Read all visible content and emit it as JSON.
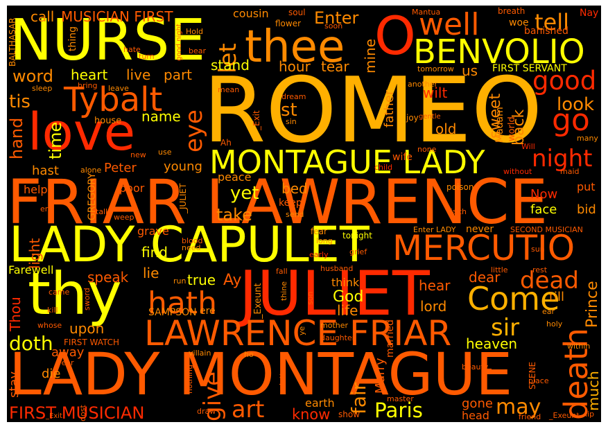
{
  "palette": {
    "yellow": "#ffff00",
    "gold": "#ffb000",
    "orange": "#ff8a00",
    "darkorange": "#ff5a00",
    "red": "#ff2a00",
    "darkred": "#e60000",
    "background": "#000000"
  },
  "words": [
    {
      "text": "ROMEO",
      "color": "gold"
    },
    {
      "text": "FRIAR LAWRENCE",
      "color": "darkorange"
    },
    {
      "text": "LADY MONTAGUE",
      "color": "darkorange"
    },
    {
      "text": "NURSE",
      "color": "yellow"
    },
    {
      "text": "JULIET",
      "color": "red"
    },
    {
      "text": "LADY CAPULET",
      "color": "yellow"
    },
    {
      "text": "love",
      "color": "red"
    },
    {
      "text": "thy",
      "color": "yellow"
    },
    {
      "text": "thee",
      "color": "orange"
    },
    {
      "text": "O",
      "color": "red"
    },
    {
      "text": "MONTAGUE LADY",
      "color": "yellow"
    },
    {
      "text": "LAWRENCE FRIAR",
      "color": "darkorange"
    },
    {
      "text": "MERCUTIO",
      "color": "darkorange"
    },
    {
      "text": "BENVOLIO",
      "color": "yellow"
    },
    {
      "text": "Tybalt",
      "color": "darkorange"
    },
    {
      "text": "well",
      "color": "darkorange"
    },
    {
      "text": "good",
      "color": "red"
    },
    {
      "text": "go",
      "color": "red"
    },
    {
      "text": "death",
      "color": "darkorange"
    },
    {
      "text": "Come",
      "color": "gold"
    },
    {
      "text": "hath",
      "color": "darkorange"
    },
    {
      "text": "night",
      "color": "red"
    },
    {
      "text": "art",
      "color": "darkorange"
    },
    {
      "text": "Paris",
      "color": "yellow"
    },
    {
      "text": "dead",
      "color": "darkorange"
    },
    {
      "text": "tell",
      "color": "orange"
    },
    {
      "text": "let",
      "color": "orange"
    },
    {
      "text": "eye",
      "color": "darkorange"
    },
    {
      "text": "give",
      "color": "darkorange"
    },
    {
      "text": "may",
      "color": "orange"
    },
    {
      "text": "sir",
      "color": "gold"
    },
    {
      "text": "Enter",
      "color": "orange"
    },
    {
      "text": "FIRST MUSICIAN",
      "color": "red"
    },
    {
      "text": "doth",
      "color": "yellow"
    },
    {
      "text": "know",
      "color": "red"
    },
    {
      "text": "fair",
      "color": "orange"
    },
    {
      "text": "much",
      "color": "gold"
    },
    {
      "text": "Prince",
      "color": "orange"
    },
    {
      "text": "look",
      "color": "orange"
    },
    {
      "text": "word",
      "color": "orange"
    },
    {
      "text": "tis",
      "color": "orange"
    },
    {
      "text": "hand",
      "color": "darkorange"
    },
    {
      "text": "time",
      "color": "yellow"
    },
    {
      "text": "heart",
      "color": "yellow"
    },
    {
      "text": "live",
      "color": "orange"
    },
    {
      "text": "part",
      "color": "orange"
    },
    {
      "text": "stand",
      "color": "yellow"
    },
    {
      "text": "hour",
      "color": "orange"
    },
    {
      "text": "tear",
      "color": "orange"
    },
    {
      "text": "st",
      "color": "orange"
    },
    {
      "text": "old",
      "color": "orange"
    },
    {
      "text": "name",
      "color": "yellow"
    },
    {
      "text": "yet",
      "color": "yellow"
    },
    {
      "text": "take",
      "color": "orange"
    },
    {
      "text": "bed",
      "color": "orange"
    },
    {
      "text": "face",
      "color": "yellow"
    },
    {
      "text": "bid",
      "color": "orange"
    },
    {
      "text": "Now",
      "color": "red"
    },
    {
      "text": "sweet",
      "color": "orange"
    },
    {
      "text": "back",
      "color": "orange"
    },
    {
      "text": "wilt",
      "color": "red"
    },
    {
      "text": "us",
      "color": "orange"
    },
    {
      "text": "mine",
      "color": "orange"
    },
    {
      "text": "father",
      "color": "orange"
    },
    {
      "text": "find",
      "color": "yellow"
    },
    {
      "text": "lie",
      "color": "orange"
    },
    {
      "text": "speak",
      "color": "darkorange"
    },
    {
      "text": "true",
      "color": "yellow"
    },
    {
      "text": "Ay",
      "color": "darkorange"
    },
    {
      "text": "God",
      "color": "yellow"
    },
    {
      "text": "life",
      "color": "orange"
    },
    {
      "text": "think",
      "color": "orange"
    },
    {
      "text": "hear",
      "color": "darkorange"
    },
    {
      "text": "lord",
      "color": "orange"
    },
    {
      "text": "dear",
      "color": "darkorange"
    },
    {
      "text": "till",
      "color": "orange"
    },
    {
      "text": "heaven",
      "color": "yellow"
    },
    {
      "text": "upon",
      "color": "orange"
    },
    {
      "text": "Thou",
      "color": "red"
    },
    {
      "text": "light",
      "color": "darkorange"
    },
    {
      "text": "away",
      "color": "darkorange"
    },
    {
      "text": "die",
      "color": "orange"
    },
    {
      "text": "stay",
      "color": "darkorange"
    },
    {
      "text": "gone",
      "color": "darkorange"
    },
    {
      "text": "head",
      "color": "darkorange"
    },
    {
      "text": "Marry",
      "color": "darkorange"
    },
    {
      "text": "earth",
      "color": "orange"
    },
    {
      "text": "call",
      "color": "orange"
    },
    {
      "text": "MUSICIAN FIRST",
      "color": "darkorange"
    },
    {
      "text": "cousin",
      "color": "orange"
    },
    {
      "text": "soul",
      "color": "darkorange"
    },
    {
      "text": "flower",
      "color": "orange"
    },
    {
      "text": "soon",
      "color": "darkorange"
    },
    {
      "text": "Mantua",
      "color": "darkorange"
    },
    {
      "text": "breath",
      "color": "darkorange"
    },
    {
      "text": "woe",
      "color": "orange"
    },
    {
      "text": "Nay",
      "color": "red"
    },
    {
      "text": "banished",
      "color": "darkorange"
    },
    {
      "text": "thing",
      "color": "orange"
    },
    {
      "text": "good night",
      "color": "darkorange"
    },
    {
      "text": "Hold",
      "color": "orange"
    },
    {
      "text": "hate",
      "color": "darkorange"
    },
    {
      "text": "turn",
      "color": "darkorange"
    },
    {
      "text": "bear",
      "color": "darkorange"
    },
    {
      "text": "BALTHASAR",
      "color": "orange"
    },
    {
      "text": "tomorrow",
      "color": "orange"
    },
    {
      "text": "FIRST SERVANT",
      "color": "yellow"
    },
    {
      "text": "another",
      "color": "orange"
    },
    {
      "text": "sleep",
      "color": "orange"
    },
    {
      "text": "bring",
      "color": "darkorange"
    },
    {
      "text": "leave",
      "color": "orange"
    },
    {
      "text": "mean",
      "color": "darkorange"
    },
    {
      "text": "_Exit",
      "color": "darkorange"
    },
    {
      "text": "dream",
      "color": "darkorange"
    },
    {
      "text": "sin",
      "color": "orange"
    },
    {
      "text": "joy",
      "color": "orange"
    },
    {
      "text": "gentle",
      "color": "darkorange"
    },
    {
      "text": "Madam",
      "color": "orange"
    },
    {
      "text": "world",
      "color": "darkorange"
    },
    {
      "text": "many",
      "color": "orange"
    },
    {
      "text": "house",
      "color": "orange"
    },
    {
      "text": "wife",
      "color": "darkorange"
    },
    {
      "text": "none",
      "color": "darkorange"
    },
    {
      "text": "Will",
      "color": "red"
    },
    {
      "text": "new",
      "color": "darkorange"
    },
    {
      "text": "use",
      "color": "orange"
    },
    {
      "text": "Ah",
      "color": "darkorange"
    },
    {
      "text": "hast",
      "color": "orange"
    },
    {
      "text": "Peter",
      "color": "darkorange"
    },
    {
      "text": "young",
      "color": "orange"
    },
    {
      "text": "alone",
      "color": "orange"
    },
    {
      "text": "child",
      "color": "red"
    },
    {
      "text": "without",
      "color": "red"
    },
    {
      "text": "maid",
      "color": "darkorange"
    },
    {
      "text": "help",
      "color": "darkorange"
    },
    {
      "text": "GREGORY",
      "color": "orange"
    },
    {
      "text": "poor",
      "color": "darkorange"
    },
    {
      "text": "peace",
      "color": "orange"
    },
    {
      "text": "_JULIET",
      "color": "orange"
    },
    {
      "text": "poison",
      "color": "orange"
    },
    {
      "text": "put",
      "color": "darkorange"
    },
    {
      "text": "er",
      "color": "darkorange"
    },
    {
      "text": "talk",
      "color": "darkorange"
    },
    {
      "text": "weep",
      "color": "darkorange"
    },
    {
      "text": "keep",
      "color": "darkorange"
    },
    {
      "text": "send",
      "color": "orange"
    },
    {
      "text": "faith",
      "color": "darkorange"
    },
    {
      "text": "grave",
      "color": "darkorange"
    },
    {
      "text": "fear",
      "color": "orange"
    },
    {
      "text": "tonight",
      "color": "yellow"
    },
    {
      "text": "Enter LADY",
      "color": "orange"
    },
    {
      "text": "never",
      "color": "orange"
    },
    {
      "text": "SECOND MUSICIAN",
      "color": "darkorange"
    },
    {
      "text": "blood",
      "color": "darkorange"
    },
    {
      "text": "need",
      "color": "orange"
    },
    {
      "text": "long",
      "color": "orange"
    },
    {
      "text": "early",
      "color": "red"
    },
    {
      "text": "grief",
      "color": "darkorange"
    },
    {
      "text": "sun",
      "color": "darkorange"
    },
    {
      "text": "Farewell",
      "color": "yellow"
    },
    {
      "text": "husband",
      "color": "darkorange"
    },
    {
      "text": "little",
      "color": "darkorange"
    },
    {
      "text": "rest",
      "color": "darkorange"
    },
    {
      "text": "run",
      "color": "orange"
    },
    {
      "text": "fall",
      "color": "darkorange"
    },
    {
      "text": "came",
      "color": "darkorange"
    },
    {
      "text": "sword",
      "color": "darkorange"
    },
    {
      "text": "_Exeunt",
      "color": "orange"
    },
    {
      "text": "thine",
      "color": "orange"
    },
    {
      "text": "son",
      "color": "darkorange"
    },
    {
      "text": "married",
      "color": "darkorange"
    },
    {
      "text": "kill",
      "color": "darkorange"
    },
    {
      "text": "SAMPSON",
      "color": "orange"
    },
    {
      "text": "ere",
      "color": "orange"
    },
    {
      "text": "ear",
      "color": "orange"
    },
    {
      "text": "holy",
      "color": "orange"
    },
    {
      "text": "whose",
      "color": "darkorange"
    },
    {
      "text": "ye",
      "color": "orange"
    },
    {
      "text": "mother",
      "color": "orange"
    },
    {
      "text": "FIRST WATCH",
      "color": "darkorange"
    },
    {
      "text": "daughter",
      "color": "darkorange"
    },
    {
      "text": "within",
      "color": "orange"
    },
    {
      "text": "villain",
      "color": "orange"
    },
    {
      "text": "ho",
      "color": "orange"
    },
    {
      "text": "year",
      "color": "darkorange"
    },
    {
      "text": "nothing",
      "color": "darkorange"
    },
    {
      "text": "letter",
      "color": "darkorange"
    },
    {
      "text": "beauty",
      "color": "darkorange"
    },
    {
      "text": "ill",
      "color": "darkorange"
    },
    {
      "text": "SCENE",
      "color": "darkorange"
    },
    {
      "text": "draw",
      "color": "darkorange"
    },
    {
      "text": "place",
      "color": "darkorange"
    },
    {
      "text": "_Exit",
      "color": "darkorange"
    },
    {
      "text": "dost",
      "color": "darkorange"
    },
    {
      "text": "show",
      "color": "darkorange"
    },
    {
      "text": "master",
      "color": "darkorange"
    },
    {
      "text": "friend",
      "color": "darkorange"
    },
    {
      "text": "_Exeunt",
      "color": "darkorange"
    },
    {
      "text": "lip",
      "color": "darkorange"
    }
  ]
}
